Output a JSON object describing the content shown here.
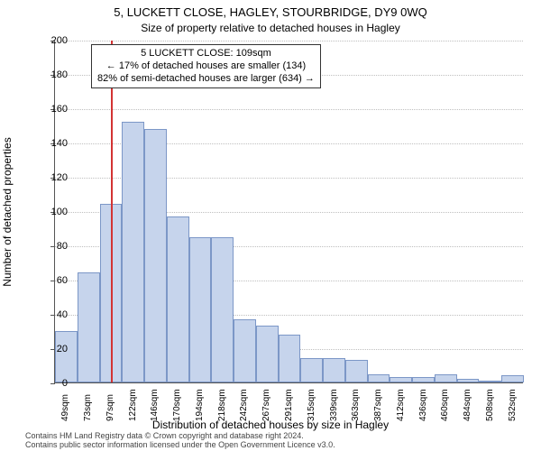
{
  "titles": {
    "main": "5, LUCKETT CLOSE, HAGLEY, STOURBRIDGE, DY9 0WQ",
    "sub": "Size of property relative to detached houses in Hagley"
  },
  "ylabel": "Number of detached properties",
  "xlabel": "Distribution of detached houses by size in Hagley",
  "attribution": {
    "line1": "Contains HM Land Registry data © Crown copyright and database right 2024.",
    "line2": "Contains public sector information licensed under the Open Government Licence v3.0."
  },
  "chart": {
    "type": "histogram",
    "ylim": [
      0,
      200
    ],
    "ytick_step": 20,
    "bar_fill": "#c6d4ec",
    "bar_border": "#7c97c7",
    "grid_color": "#bfbfbf",
    "axis_color": "#555555",
    "background_color": "#ffffff",
    "marker_line_color": "#d33333",
    "marker_x_value": 109,
    "x_start": 49,
    "x_bin_width": 24,
    "categories": [
      "49sqm",
      "73sqm",
      "97sqm",
      "122sqm",
      "146sqm",
      "170sqm",
      "194sqm",
      "218sqm",
      "242sqm",
      "267sqm",
      "291sqm",
      "315sqm",
      "339sqm",
      "363sqm",
      "387sqm",
      "412sqm",
      "436sqm",
      "460sqm",
      "484sqm",
      "508sqm",
      "532sqm"
    ],
    "values": [
      30,
      64,
      104,
      152,
      148,
      97,
      85,
      85,
      37,
      33,
      28,
      14,
      14,
      13,
      5,
      3,
      3,
      5,
      2,
      0,
      4
    ],
    "title_fontsize": 13,
    "subtitle_fontsize": 12,
    "label_fontsize": 12,
    "tick_fontsize": 11
  },
  "annotation": {
    "line1": "5 LUCKETT CLOSE: 109sqm",
    "line2": "← 17% of detached houses are smaller (134)",
    "line3": "82% of semi-detached houses are larger (634) →"
  }
}
